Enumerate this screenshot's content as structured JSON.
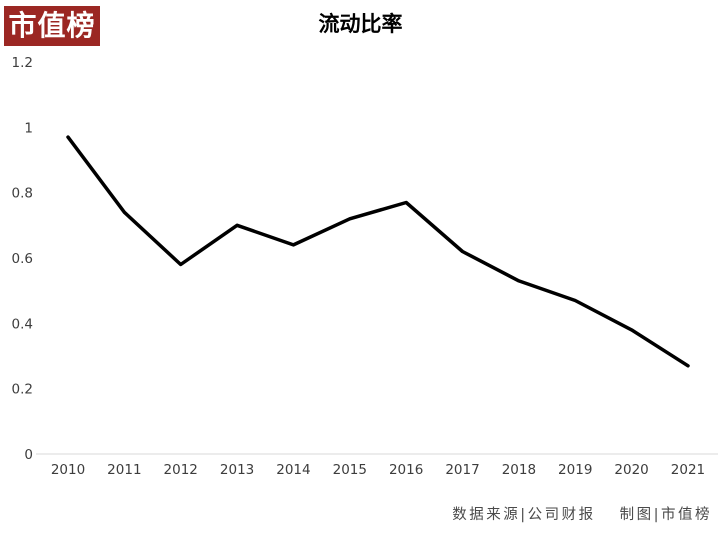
{
  "badge": {
    "label": "市值榜",
    "bg_color": "#9b2723",
    "text_color": "#ffffff"
  },
  "title": "流动比率",
  "footer": {
    "source_label": "数据来源|公司财报",
    "credit_label": "制图|市值榜"
  },
  "chart_data": {
    "type": "line",
    "title": "流动比率",
    "categories": [
      "2010",
      "2011",
      "2012",
      "2013",
      "2014",
      "2015",
      "2016",
      "2017",
      "2018",
      "2019",
      "2020",
      "2021"
    ],
    "values": [
      0.97,
      0.74,
      0.58,
      0.7,
      0.64,
      0.72,
      0.77,
      0.62,
      0.53,
      0.47,
      0.38,
      0.27
    ],
    "xlabel": "",
    "ylabel": "",
    "ylim": [
      0,
      1.2
    ],
    "yticks": [
      {
        "value": 0,
        "label": "0"
      },
      {
        "value": 0.2,
        "label": "0.2"
      },
      {
        "value": 0.4,
        "label": "0.4"
      },
      {
        "value": 0.6,
        "label": "0.6"
      },
      {
        "value": 0.8,
        "label": "0.8"
      },
      {
        "value": 1,
        "label": "1"
      },
      {
        "value": 1.2,
        "label": "1.2"
      }
    ],
    "grid": false,
    "legend": "none",
    "line_color": "#000000",
    "line_width": 3.5,
    "axis_color": "#d9d9d9",
    "tick_label_color": "#3d3d3d"
  }
}
